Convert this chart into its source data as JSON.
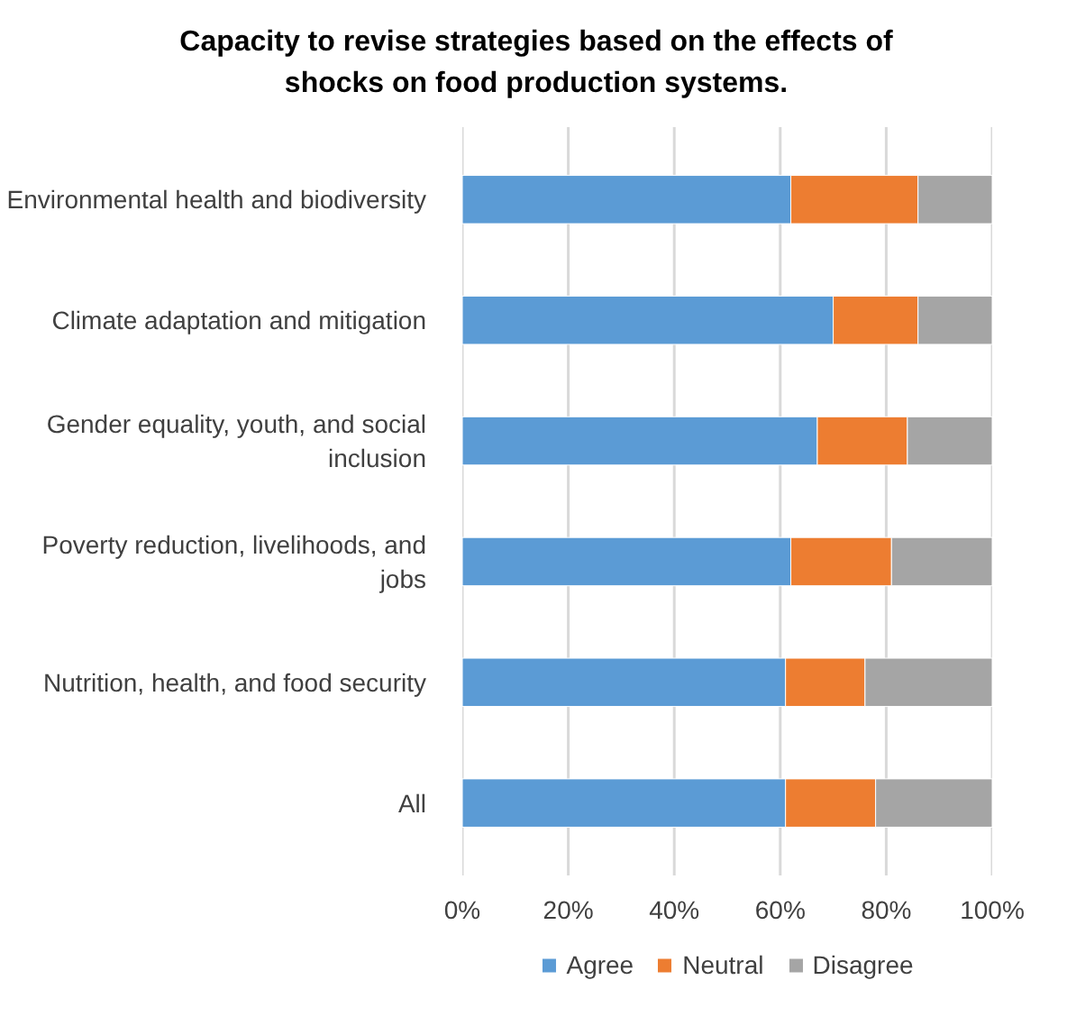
{
  "chart_data": {
    "type": "bar",
    "orientation": "horizontal",
    "stacked": true,
    "title": "Capacity to revise strategies based on the effects of shocks on food production systems.",
    "categories": [
      "Environmental health and biodiversity",
      "Climate adaptation and mitigation",
      "Gender equality, youth, and social inclusion",
      "Poverty reduction, livelihoods, and jobs",
      "Nutrition, health, and food security",
      "All"
    ],
    "series": [
      {
        "name": "Agree",
        "color": "#5b9bd5",
        "values": [
          62,
          70,
          67,
          62,
          61,
          61
        ]
      },
      {
        "name": "Neutral",
        "color": "#ed7d31",
        "values": [
          24,
          16,
          17,
          19,
          15,
          17
        ]
      },
      {
        "name": "Disagree",
        "color": "#a5a5a5",
        "values": [
          14,
          14,
          16,
          19,
          24,
          22
        ]
      }
    ],
    "xlim": [
      0,
      100
    ],
    "xticks": [
      {
        "value": 0,
        "label": "0%"
      },
      {
        "value": 20,
        "label": "20%"
      },
      {
        "value": 40,
        "label": "40%"
      },
      {
        "value": 60,
        "label": "60%"
      },
      {
        "value": 80,
        "label": "80%"
      },
      {
        "value": 100,
        "label": "100%"
      }
    ],
    "grid": "x",
    "legend": "bottom"
  }
}
